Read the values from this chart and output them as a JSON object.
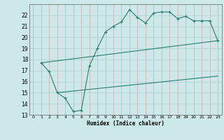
{
  "title": "",
  "xlabel": "Humidex (Indice chaleur)",
  "bg_color": "#cce8e8",
  "grid_color": "#aacfcf",
  "line_color": "#2a7d70",
  "xlim": [
    -0.5,
    23.5
  ],
  "ylim": [
    13,
    23
  ],
  "xticks": [
    0,
    1,
    2,
    3,
    4,
    5,
    6,
    7,
    8,
    9,
    10,
    11,
    12,
    13,
    14,
    15,
    16,
    17,
    18,
    19,
    20,
    21,
    22,
    23
  ],
  "yticks": [
    13,
    14,
    15,
    16,
    17,
    18,
    19,
    20,
    21,
    22
  ],
  "zigzag_x": [
    1,
    2,
    3,
    4,
    5,
    6,
    7,
    8,
    9,
    10,
    11,
    12,
    13,
    14,
    15,
    16,
    17,
    18,
    19,
    20,
    21,
    22,
    23
  ],
  "zigzag_y": [
    17.7,
    16.9,
    15.0,
    14.5,
    13.3,
    13.4,
    17.4,
    19.0,
    20.5,
    21.0,
    21.4,
    22.5,
    21.8,
    21.3,
    22.2,
    22.3,
    22.3,
    21.7,
    21.9,
    21.5,
    21.5,
    21.5,
    19.7
  ],
  "upper_line_x": [
    1,
    23
  ],
  "upper_line_y": [
    17.7,
    19.7
  ],
  "lower_line_x": [
    3,
    23
  ],
  "lower_line_y": [
    15.0,
    16.5
  ]
}
